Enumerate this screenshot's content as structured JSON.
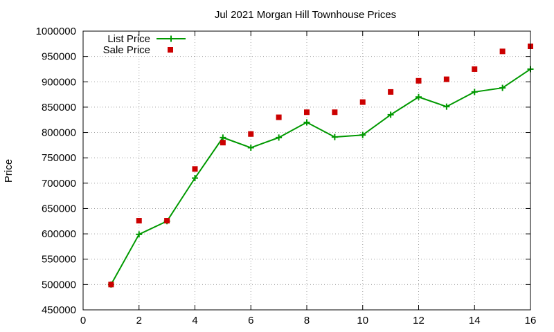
{
  "chart_data": {
    "type": "line",
    "title": "Jul 2021 Morgan Hill Townhouse Prices",
    "xlabel": "",
    "ylabel": "Price",
    "xlim": [
      0,
      16
    ],
    "ylim": [
      450000,
      1000000
    ],
    "x_ticks": [
      0,
      2,
      4,
      6,
      8,
      10,
      12,
      14,
      16
    ],
    "y_ticks": [
      450000,
      500000,
      550000,
      600000,
      650000,
      700000,
      750000,
      800000,
      850000,
      900000,
      950000,
      1000000
    ],
    "grid": true,
    "legend_position": "top-left",
    "series": [
      {
        "name": "List Price",
        "style": "line-with-plus-markers",
        "color": "#009900",
        "x": [
          1,
          2,
          3,
          4,
          5,
          6,
          7,
          8,
          9,
          10,
          11,
          12,
          13,
          14,
          15,
          16
        ],
        "y": [
          500000,
          599000,
          625000,
          710000,
          790000,
          770000,
          790000,
          820000,
          791000,
          795000,
          835000,
          870000,
          851000,
          880000,
          888000,
          925000
        ]
      },
      {
        "name": "Sale Price",
        "style": "square-markers",
        "color": "#cc0000",
        "x": [
          1,
          2,
          3,
          4,
          5,
          6,
          7,
          8,
          9,
          10,
          11,
          12,
          13,
          14,
          15,
          16
        ],
        "y": [
          500000,
          626000,
          626000,
          728000,
          780000,
          797000,
          830000,
          840000,
          840000,
          860000,
          880000,
          902000,
          905000,
          925000,
          960000,
          970000
        ]
      }
    ]
  }
}
